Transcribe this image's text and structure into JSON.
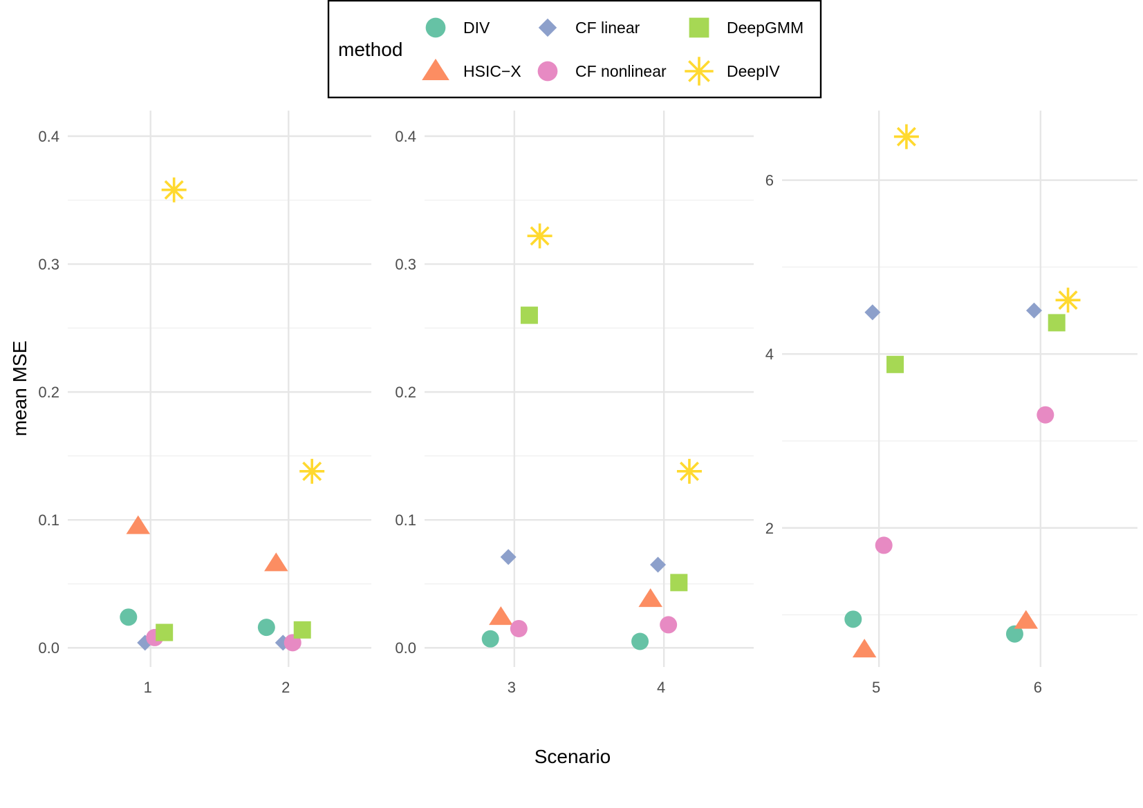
{
  "chart_data": {
    "type": "scatter",
    "xlabel": "Scenario",
    "ylabel": "mean MSE",
    "legend": {
      "title": "method",
      "placement": "top-center",
      "entries": [
        {
          "name": "DIV",
          "shape": "circle",
          "color": "#66C2A5"
        },
        {
          "name": "CF linear",
          "shape": "diamond",
          "color": "#8DA0CB"
        },
        {
          "name": "DeepGMM",
          "shape": "square",
          "color": "#A6D854"
        },
        {
          "name": "HSIC−X",
          "shape": "triangle",
          "color": "#FC8D62"
        },
        {
          "name": "CF nonlinear",
          "shape": "circle",
          "color": "#E78AC3"
        },
        {
          "name": "DeepIV",
          "shape": "asterisk",
          "color": "#FFD92F"
        }
      ]
    },
    "panels": [
      {
        "scenarios": [
          "1",
          "2"
        ],
        "ylim": [
          -0.015,
          0.42
        ],
        "yticks": [
          0.0,
          0.1,
          0.2,
          0.3,
          0.4
        ],
        "ytick_labels": [
          "0.0",
          "0.1",
          "0.2",
          "0.3",
          "0.4"
        ],
        "minor_yticks": [
          0.05,
          0.15,
          0.25,
          0.35
        ],
        "series": [
          {
            "name": "DIV",
            "values": [
              0.024,
              0.016
            ]
          },
          {
            "name": "HSIC−X",
            "values": [
              0.095,
              0.066
            ]
          },
          {
            "name": "CF linear",
            "values": [
              0.004,
              0.004
            ]
          },
          {
            "name": "CF nonlinear",
            "values": [
              0.008,
              0.004
            ]
          },
          {
            "name": "DeepGMM",
            "values": [
              0.012,
              0.014
            ]
          },
          {
            "name": "DeepIV",
            "values": [
              0.358,
              0.138
            ]
          }
        ]
      },
      {
        "scenarios": [
          "3",
          "4"
        ],
        "ylim": [
          -0.015,
          0.42
        ],
        "yticks": [
          0.0,
          0.1,
          0.2,
          0.3,
          0.4
        ],
        "ytick_labels": [
          "0.0",
          "0.1",
          "0.2",
          "0.3",
          "0.4"
        ],
        "minor_yticks": [
          0.05,
          0.15,
          0.25,
          0.35
        ],
        "series": [
          {
            "name": "DIV",
            "values": [
              0.007,
              0.005
            ]
          },
          {
            "name": "HSIC−X",
            "values": [
              0.024,
              0.038
            ]
          },
          {
            "name": "CF linear",
            "values": [
              0.071,
              0.065
            ]
          },
          {
            "name": "CF nonlinear",
            "values": [
              0.015,
              0.018
            ]
          },
          {
            "name": "DeepGMM",
            "values": [
              0.26,
              0.051
            ]
          },
          {
            "name": "DeepIV",
            "values": [
              0.322,
              0.138
            ]
          }
        ]
      },
      {
        "scenarios": [
          "5",
          "6"
        ],
        "ylim": [
          0.4,
          6.8
        ],
        "yticks": [
          2,
          4,
          6
        ],
        "ytick_labels": [
          "2",
          "4",
          "6"
        ],
        "minor_yticks": [
          1,
          3,
          5
        ],
        "series": [
          {
            "name": "DIV",
            "values": [
              0.95,
              0.78
            ]
          },
          {
            "name": "HSIC−X",
            "values": [
              0.6,
              0.93
            ]
          },
          {
            "name": "CF linear",
            "values": [
              4.48,
              4.5
            ]
          },
          {
            "name": "CF nonlinear",
            "values": [
              1.8,
              3.3
            ]
          },
          {
            "name": "DeepGMM",
            "values": [
              3.88,
              4.36
            ]
          },
          {
            "name": "DeepIV",
            "values": [
              6.5,
              4.62
            ]
          }
        ]
      }
    ]
  }
}
